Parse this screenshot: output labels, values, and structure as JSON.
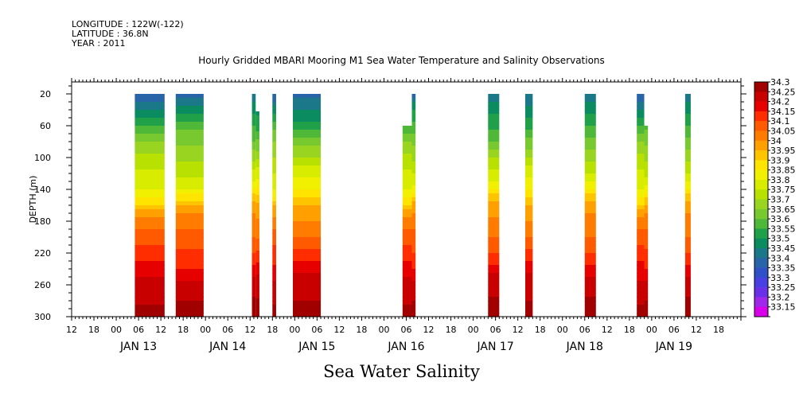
{
  "header": {
    "longitude": "LONGITUDE : 122W(-122)",
    "latitude": "LATITUDE : 36.8N",
    "year": "YEAR : 2011",
    "title": "Hourly Gridded MBARI Mooring M1 Sea Water Temperature and Salinity Observations",
    "subtitle": "Sea Water Salinity"
  },
  "chart_data": {
    "type": "heatmap",
    "title": "Hourly Gridded MBARI Mooring M1 Sea Water Temperature and Salinity Observations",
    "subtitle": "Sea Water Salinity",
    "ylabel": "DEPTH (m)",
    "xlabel": "",
    "y_axis": {
      "range": [
        0,
        300
      ],
      "inverted": true,
      "tick_labels": [
        "20",
        "60",
        "100",
        "140",
        "180",
        "220",
        "260",
        "300"
      ]
    },
    "x_axis": {
      "range_hours": [
        -12,
        168
      ],
      "hour_tick_labels": [
        "00",
        "06",
        "12",
        "18"
      ],
      "day_labels": [
        "JAN 13",
        "JAN 14",
        "JAN 15",
        "JAN 16",
        "JAN 17",
        "JAN 18",
        "JAN 19"
      ]
    },
    "colorbar": {
      "levels": [
        "34.3",
        "34.25",
        "34.2",
        "34.15",
        "34.1",
        "34.05",
        "34",
        "33.95",
        "33.9",
        "33.85",
        "33.8",
        "33.75",
        "33.7",
        "33.65",
        "33.6",
        "33.55",
        "33.5",
        "33.45",
        "33.4",
        "33.35",
        "33.3",
        "33.25",
        "33.2",
        "33.15"
      ],
      "colors": [
        "#a00000",
        "#c80000",
        "#e60000",
        "#ff2d00",
        "#ff5a00",
        "#ff7c00",
        "#ffa000",
        "#ffc400",
        "#ffe400",
        "#f0f000",
        "#d8ec00",
        "#b8e000",
        "#98d420",
        "#78c830",
        "#50b838",
        "#20a048",
        "#0a8c60",
        "#1a7888",
        "#2864a8",
        "#3050c8",
        "#4840e0",
        "#6a30e8",
        "#a028e8",
        "#d800e8"
      ]
    },
    "profile_depths": [
      20,
      40,
      60,
      80,
      100,
      120,
      140,
      160,
      180,
      200,
      220,
      240,
      260,
      280,
      300
    ],
    "profile_salinity": [
      33.38,
      33.47,
      33.55,
      33.63,
      33.7,
      33.76,
      33.82,
      33.95,
      34.02,
      34.06,
      34.11,
      34.17,
      34.23,
      34.25,
      34.26
    ],
    "data_segments": [
      {
        "start_hour": 5,
        "end_hour": 13,
        "top_depth": 20
      },
      {
        "start_hour": 16,
        "end_hour": 23.5,
        "top_depth": 20
      },
      {
        "start_hour": 36.5,
        "end_hour": 37.5,
        "top_depth": 20
      },
      {
        "start_hour": 37.5,
        "end_hour": 38.5,
        "top_depth": 42
      },
      {
        "start_hour": 42,
        "end_hour": 43,
        "top_depth": 20
      },
      {
        "start_hour": 47.5,
        "end_hour": 55,
        "top_depth": 20
      },
      {
        "start_hour": 77,
        "end_hour": 79.5,
        "top_depth": 60
      },
      {
        "start_hour": 79.5,
        "end_hour": 80.5,
        "top_depth": 20
      },
      {
        "start_hour": 100,
        "end_hour": 103,
        "top_depth": 20
      },
      {
        "start_hour": 110,
        "end_hour": 112,
        "top_depth": 20
      },
      {
        "start_hour": 126,
        "end_hour": 129,
        "top_depth": 20
      },
      {
        "start_hour": 140,
        "end_hour": 142,
        "top_depth": 20
      },
      {
        "start_hour": 142,
        "end_hour": 143,
        "top_depth": 60
      },
      {
        "start_hour": 153,
        "end_hour": 154.5,
        "top_depth": 20
      }
    ]
  }
}
